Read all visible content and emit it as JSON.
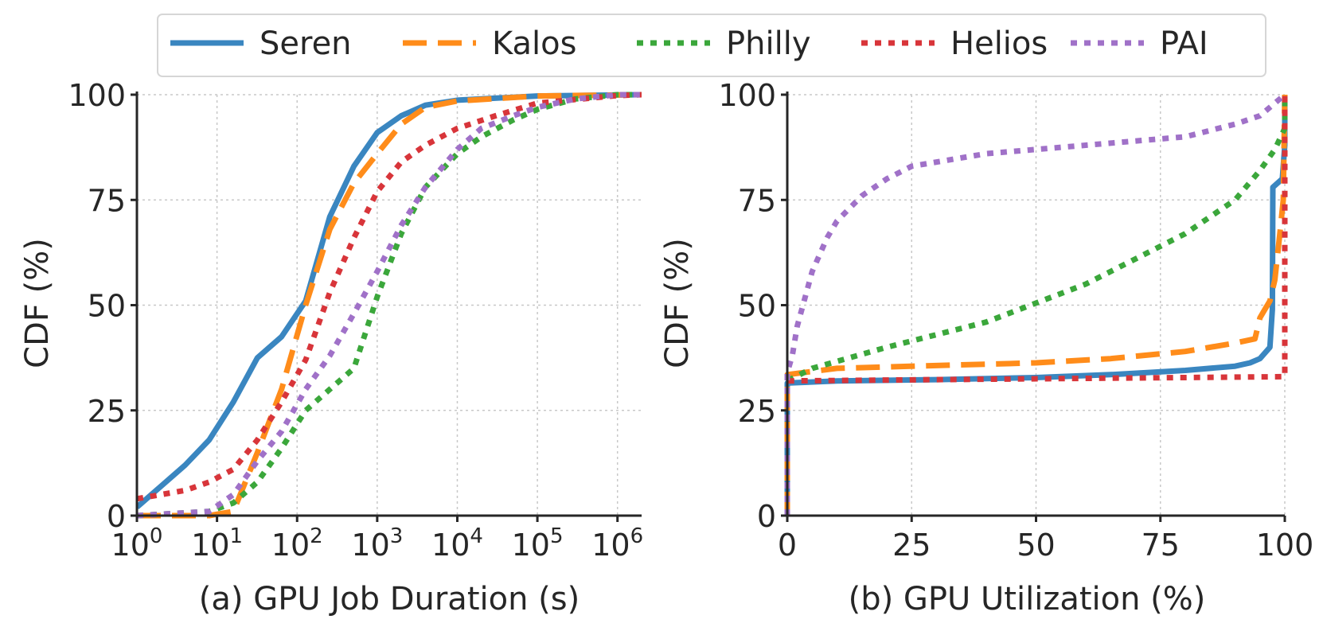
{
  "legend": {
    "placement": "top-center",
    "entries": [
      {
        "name": "Seren",
        "color": "#3a86c0",
        "dash": "solid"
      },
      {
        "name": "Kalos",
        "color": "#ff8c1a",
        "dash": "dashed"
      },
      {
        "name": "Philly",
        "color": "#3ba73b",
        "dash": "dotted"
      },
      {
        "name": "Helios",
        "color": "#d8353a",
        "dash": "dotted"
      },
      {
        "name": "PAI",
        "color": "#a071c8",
        "dash": "dotted"
      }
    ]
  },
  "chart_data": [
    {
      "type": "line",
      "xlabel": "(a) GPU Job Duration (s)",
      "ylabel": "CDF (%)",
      "xscale": "log",
      "xlim": [
        1,
        2000000
      ],
      "ylim": [
        0,
        100
      ],
      "xticks": [
        1,
        10,
        100,
        1000,
        10000,
        100000,
        1000000
      ],
      "xtick_labels": [
        {
          "base": "10",
          "exp": "0"
        },
        {
          "base": "10",
          "exp": "1"
        },
        {
          "base": "10",
          "exp": "2"
        },
        {
          "base": "10",
          "exp": "3"
        },
        {
          "base": "10",
          "exp": "4"
        },
        {
          "base": "10",
          "exp": "5"
        },
        {
          "base": "10",
          "exp": "6"
        }
      ],
      "yticks": [
        0,
        25,
        50,
        75,
        100
      ],
      "grid": true,
      "series": [
        {
          "name": "Seren",
          "points": [
            [
              1,
              2
            ],
            [
              2,
              7
            ],
            [
              4,
              12
            ],
            [
              8,
              18
            ],
            [
              16,
              27
            ],
            [
              32,
              37.5
            ],
            [
              64,
              42.5
            ],
            [
              128,
              51
            ],
            [
              256,
              71
            ],
            [
              512,
              83
            ],
            [
              1000,
              91
            ],
            [
              2000,
              95
            ],
            [
              4000,
              97.5
            ],
            [
              10000,
              98.7
            ],
            [
              100000,
              99.7
            ],
            [
              2000000,
              100
            ]
          ]
        },
        {
          "name": "Kalos",
          "points": [
            [
              1,
              0
            ],
            [
              8,
              0
            ],
            [
              16,
              1
            ],
            [
              32,
              15
            ],
            [
              64,
              30
            ],
            [
              128,
              50
            ],
            [
              256,
              68
            ],
            [
              512,
              79
            ],
            [
              1000,
              86
            ],
            [
              2000,
              93
            ],
            [
              4000,
              97
            ],
            [
              10000,
              98.5
            ],
            [
              100000,
              99.7
            ],
            [
              2000000,
              100
            ]
          ]
        },
        {
          "name": "Philly",
          "points": [
            [
              1,
              0
            ],
            [
              8,
              1
            ],
            [
              16,
              3
            ],
            [
              32,
              8
            ],
            [
              64,
              16
            ],
            [
              128,
              25
            ],
            [
              256,
              30
            ],
            [
              512,
              35
            ],
            [
              1000,
              52
            ],
            [
              2000,
              67
            ],
            [
              4000,
              78
            ],
            [
              10000,
              86
            ],
            [
              20000,
              90
            ],
            [
              50000,
              94
            ],
            [
              100000,
              96.5
            ],
            [
              300000,
              99
            ],
            [
              1000000,
              100
            ],
            [
              2000000,
              100
            ]
          ]
        },
        {
          "name": "Helios",
          "points": [
            [
              1,
              4
            ],
            [
              4,
              6
            ],
            [
              8,
              8
            ],
            [
              16,
              11
            ],
            [
              32,
              18
            ],
            [
              64,
              27
            ],
            [
              128,
              37
            ],
            [
              256,
              53
            ],
            [
              512,
              66
            ],
            [
              1000,
              77
            ],
            [
              2000,
              84
            ],
            [
              4000,
              88
            ],
            [
              10000,
              92
            ],
            [
              30000,
              95
            ],
            [
              100000,
              98
            ],
            [
              1000000,
              99.8
            ],
            [
              2000000,
              100
            ]
          ]
        },
        {
          "name": "PAI",
          "points": [
            [
              1,
              0
            ],
            [
              8,
              1
            ],
            [
              16,
              5
            ],
            [
              32,
              13
            ],
            [
              64,
              20
            ],
            [
              128,
              30
            ],
            [
              256,
              38
            ],
            [
              512,
              48
            ],
            [
              1000,
              58
            ],
            [
              2000,
              69
            ],
            [
              4000,
              78
            ],
            [
              10000,
              87
            ],
            [
              20000,
              92
            ],
            [
              50000,
              95
            ],
            [
              100000,
              97
            ],
            [
              300000,
              99
            ],
            [
              1000000,
              100
            ],
            [
              2000000,
              100
            ]
          ]
        }
      ]
    },
    {
      "type": "line",
      "xlabel": "(b) GPU Utilization (%)",
      "ylabel": "CDF (%)",
      "xscale": "linear",
      "xlim": [
        0,
        100
      ],
      "ylim": [
        0,
        100
      ],
      "xticks": [
        0,
        25,
        50,
        75,
        100
      ],
      "yticks": [
        0,
        25,
        50,
        75,
        100
      ],
      "grid": true,
      "series": [
        {
          "name": "Seren",
          "points": [
            [
              0,
              0
            ],
            [
              0,
              31.5
            ],
            [
              10,
              32
            ],
            [
              30,
              32.3
            ],
            [
              50,
              32.8
            ],
            [
              65,
              33.5
            ],
            [
              80,
              34.5
            ],
            [
              90,
              35.5
            ],
            [
              93,
              36.3
            ],
            [
              95,
              37.3
            ],
            [
              97,
              40
            ],
            [
              97.5,
              49
            ],
            [
              97.6,
              78
            ],
            [
              99.5,
              80
            ],
            [
              100,
              88
            ],
            [
              100,
              100
            ]
          ]
        },
        {
          "name": "Kalos",
          "points": [
            [
              0,
              0
            ],
            [
              0,
              33.5
            ],
            [
              10,
              35
            ],
            [
              25,
              35.5
            ],
            [
              50,
              36.3
            ],
            [
              65,
              37.3
            ],
            [
              80,
              39
            ],
            [
              90,
              41
            ],
            [
              94,
              42
            ],
            [
              95,
              47
            ],
            [
              96,
              49
            ],
            [
              97,
              51
            ],
            [
              98,
              56
            ],
            [
              99,
              67
            ],
            [
              99.7,
              75
            ],
            [
              100,
              100
            ]
          ]
        },
        {
          "name": "Philly",
          "points": [
            [
              0,
              0
            ],
            [
              0,
              32
            ],
            [
              5,
              35
            ],
            [
              20,
              40
            ],
            [
              40,
              46
            ],
            [
              60,
              55
            ],
            [
              80,
              67
            ],
            [
              90,
              75
            ],
            [
              95,
              82
            ],
            [
              98,
              87
            ],
            [
              100,
              92
            ],
            [
              100,
              100
            ]
          ]
        },
        {
          "name": "Helios",
          "points": [
            [
              0,
              0
            ],
            [
              0,
              32
            ],
            [
              100,
              33
            ],
            [
              100,
              100
            ]
          ]
        },
        {
          "name": "PAI",
          "points": [
            [
              0,
              0
            ],
            [
              0,
              34
            ],
            [
              1,
              38
            ],
            [
              2,
              45
            ],
            [
              5,
              58
            ],
            [
              8,
              66
            ],
            [
              10,
              70
            ],
            [
              15,
              76
            ],
            [
              20,
              80
            ],
            [
              25,
              83
            ],
            [
              40,
              86
            ],
            [
              60,
              88
            ],
            [
              80,
              90
            ],
            [
              90,
              93
            ],
            [
              95,
              95
            ],
            [
              98,
              98
            ],
            [
              100,
              100
            ]
          ]
        }
      ]
    }
  ]
}
